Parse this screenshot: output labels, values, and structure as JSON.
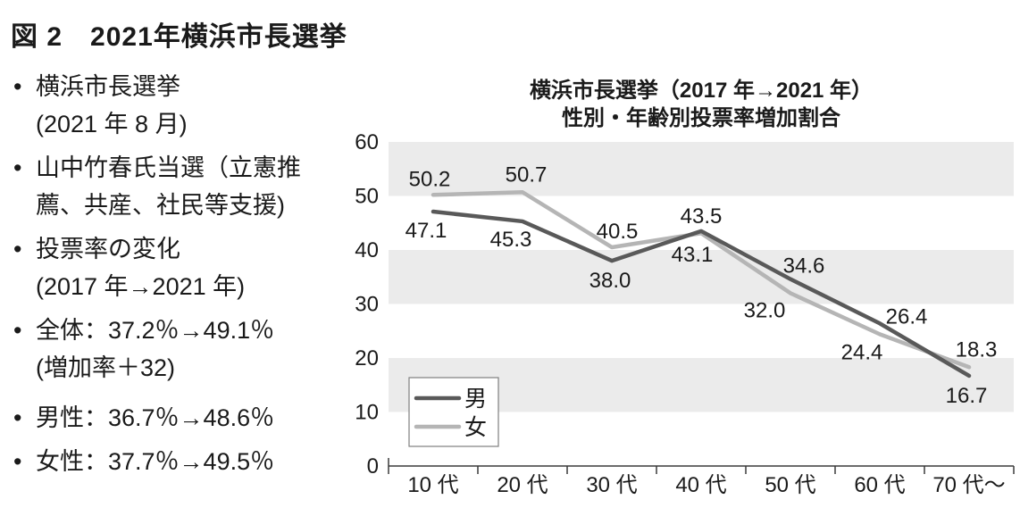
{
  "figure_title": "図 2　2021年横浜市長選挙",
  "panel": {
    "bullets": [
      [
        "横浜市長選挙",
        "(2021 年 8 月)"
      ],
      [
        "山中竹春氏当選（立憲推",
        "薦、共産、社民等支援)"
      ],
      [
        "投票率の変化",
        "(2017 年→2021 年)"
      ],
      [
        "全体：37.2％→49.1％",
        "(増加率＋32)"
      ],
      [
        "男性：36.7％→48.6％"
      ],
      [
        "女性：37.7％→49.5％"
      ]
    ]
  },
  "chart": {
    "title_line1": "横浜市長選挙（2017 年→2021 年）",
    "title_line2": "性別・年齢別投票率増加割合"
  },
  "chart_data": {
    "type": "line",
    "title": "横浜市長選挙（2017 年→2021 年） 性別・年齢別投票率増加割合",
    "categories": [
      "10 代",
      "20 代",
      "30 代",
      "40 代",
      "50 代",
      "60 代",
      "70 代～"
    ],
    "series": [
      {
        "name": "男",
        "key": "male",
        "color": "#595959",
        "values": [
          47.1,
          45.3,
          38.0,
          43.5,
          34.6,
          26.4,
          16.7
        ],
        "label_offsets": [
          [
            -8,
            29
          ],
          [
            -13,
            28
          ],
          [
            -2,
            30
          ],
          [
            0,
            -9
          ],
          [
            15,
            -7
          ],
          [
            30,
            0
          ],
          [
            -3,
            30
          ]
        ]
      },
      {
        "name": "女",
        "key": "female",
        "color": "#b5b5b5",
        "values": [
          50.2,
          50.7,
          40.5,
          43.1,
          32.0,
          24.4,
          18.3
        ],
        "label_offsets": [
          [
            -4,
            -10
          ],
          [
            4,
            -12
          ],
          [
            6,
            -10
          ],
          [
            -10,
            32
          ],
          [
            -29,
            27
          ],
          [
            -20,
            28
          ],
          [
            8,
            -12
          ]
        ]
      }
    ],
    "xlabel": "",
    "ylabel": "",
    "ylim": [
      0,
      60
    ],
    "yticks": [
      0,
      10,
      20,
      30,
      40,
      50,
      60
    ],
    "grid": "banded-horizontal",
    "band_color": "#ebebeb",
    "axis_color": "#3a3a3a",
    "label_color": "#1a1a1a",
    "legend_position": "bottom-left"
  }
}
